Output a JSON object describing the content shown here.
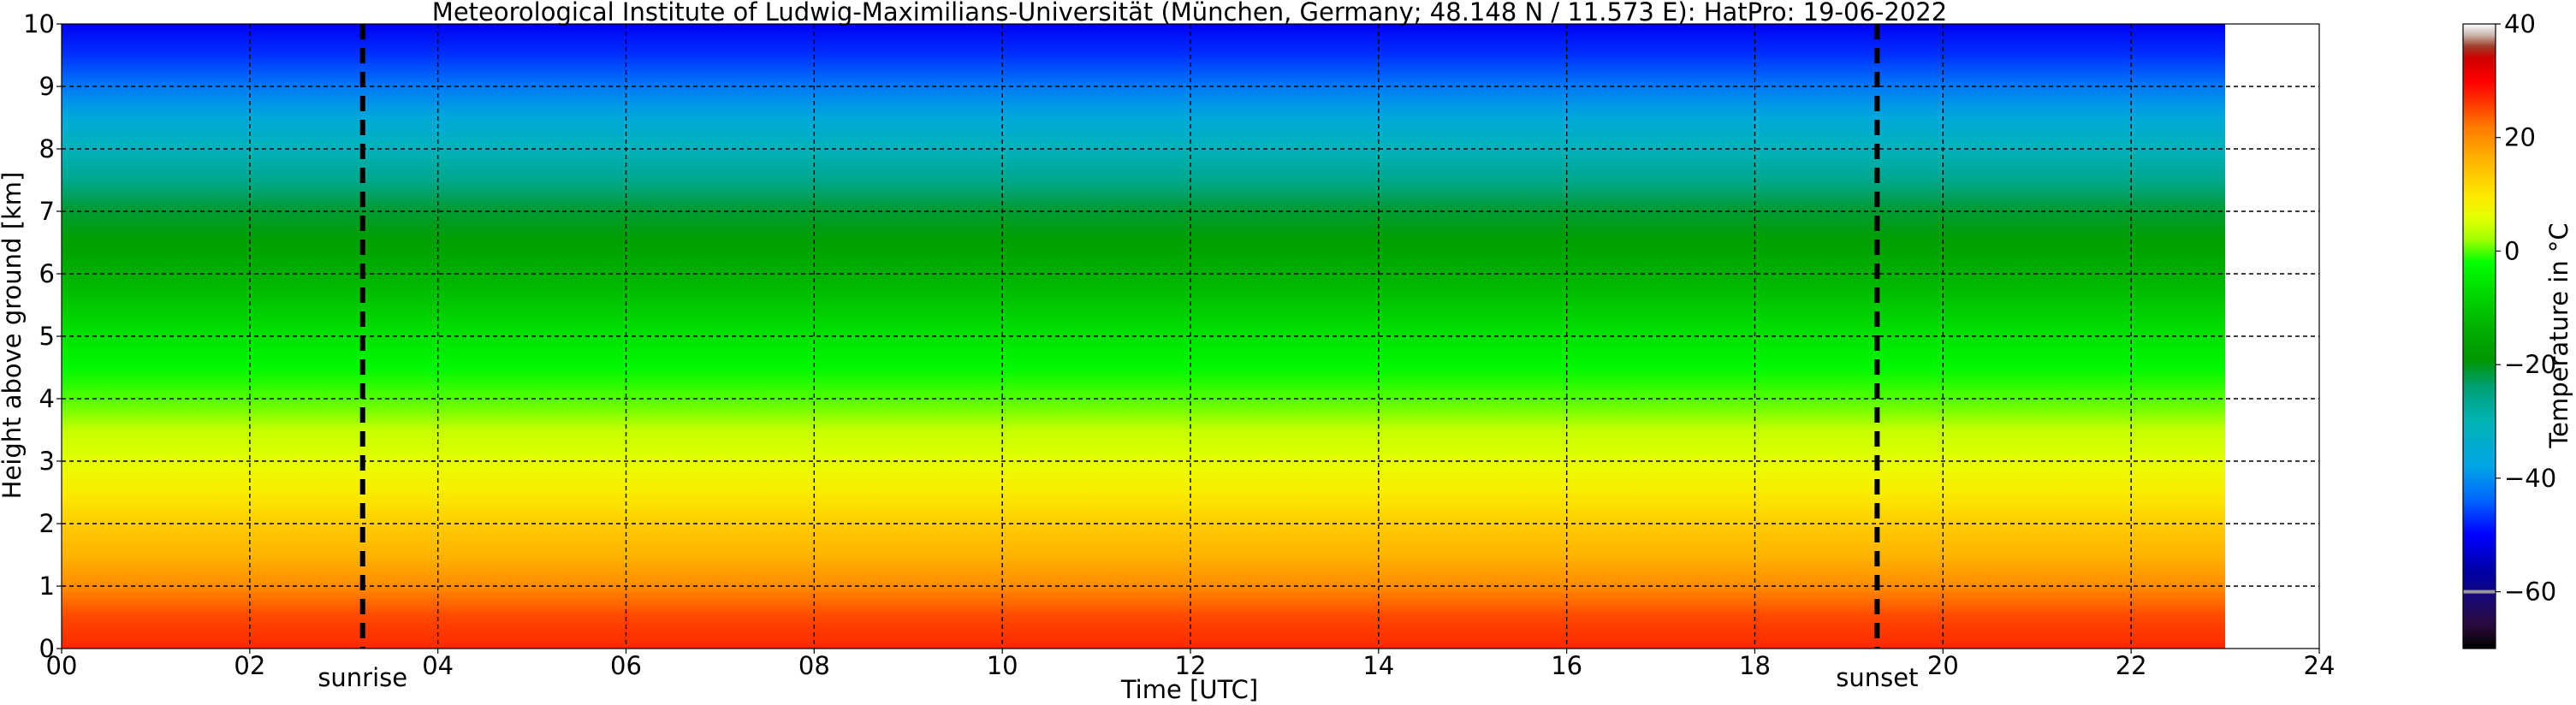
{
  "chart_data": {
    "type": "heatmap",
    "title": "Meteorological Institute of Ludwig-Maximilians-Universität (München, Germany; 48.148 N / 11.573 E):    HatPro: 19-06-2022",
    "xlabel": "Time [UTC]",
    "ylabel": "Height above ground [km]",
    "xlim": [
      0,
      24
    ],
    "ylim": [
      0,
      10
    ],
    "x_ticks": [
      0,
      2,
      4,
      6,
      8,
      10,
      12,
      14,
      16,
      18,
      20,
      22,
      24
    ],
    "x_tick_labels": [
      "00",
      "02",
      "04",
      "06",
      "08",
      "10",
      "12",
      "14",
      "16",
      "18",
      "20",
      "22",
      "24"
    ],
    "y_ticks": [
      0,
      1,
      2,
      3,
      4,
      5,
      6,
      7,
      8,
      9,
      10
    ],
    "y_tick_labels": [
      "0",
      "1",
      "2",
      "3",
      "4",
      "5",
      "6",
      "7",
      "8",
      "9",
      "10"
    ],
    "grid": true,
    "data_time_range": [
      0,
      23
    ],
    "annotations": [
      {
        "label": "sunrise",
        "x": 3.2
      },
      {
        "label": "sunset",
        "x": 19.3
      }
    ],
    "temperature_profile": {
      "height_km": [
        0,
        0.5,
        1.0,
        1.5,
        2.0,
        2.5,
        3.0,
        3.5,
        4.0,
        4.5,
        5.0,
        5.5,
        6.0,
        6.5,
        7.0,
        7.5,
        8.0,
        8.5,
        9.0,
        9.5,
        10.0
      ],
      "temperature_c": [
        27,
        25,
        20,
        16,
        13,
        9,
        6,
        4,
        0,
        -3,
        -6,
        -10,
        -14,
        -17,
        -21,
        -26,
        -31,
        -36,
        -42,
        -47,
        -51
      ]
    },
    "colorbar": {
      "label": "Temperature in $^\\circ$C",
      "label_text": "Temperature in °C",
      "range": [
        -70,
        40
      ],
      "ticks": [
        -60,
        -40,
        -20,
        0,
        20,
        40
      ],
      "tick_labels": [
        "−60",
        "−40",
        "−20",
        "0",
        "20",
        "40"
      ]
    }
  }
}
